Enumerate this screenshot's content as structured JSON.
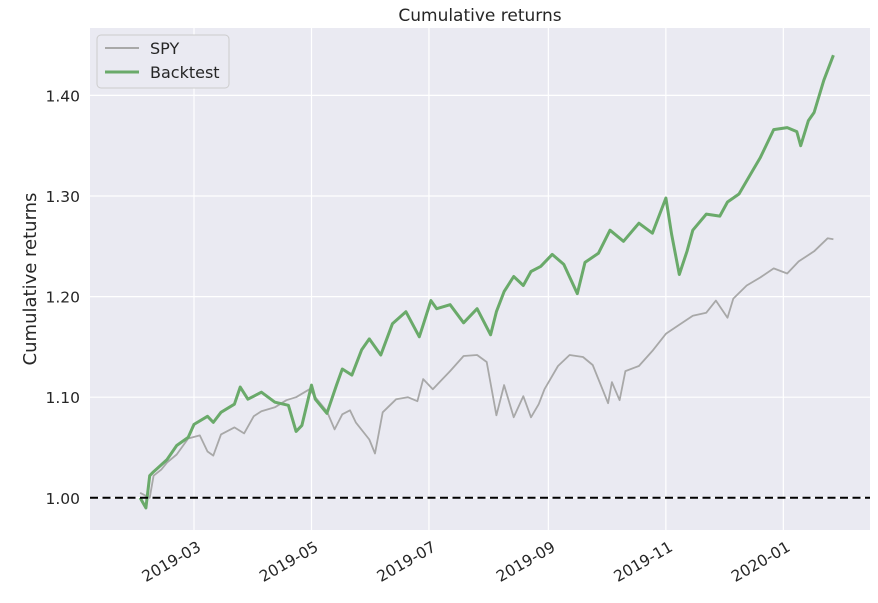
{
  "chart_data": {
    "type": "line",
    "title": "Cumulative returns",
    "xlabel": "",
    "ylabel": "Cumulative returns",
    "x_ticks": [
      "2019-03",
      "2019-05",
      "2019-07",
      "2019-09",
      "2019-11",
      "2020-01"
    ],
    "y_ticks": [
      "1.00",
      "1.10",
      "1.20",
      "1.30",
      "1.40"
    ],
    "xlim": [
      "2019-01-06",
      "2020-02-15"
    ],
    "ylim": [
      0.968,
      1.467
    ],
    "grid": true,
    "legend_position": "top-left",
    "reference_line": {
      "y": 1.0,
      "style": "dashed",
      "color": "#000000"
    },
    "series": [
      {
        "name": "SPY",
        "color": "#a8a8a8",
        "x": [
          "2019-02-01",
          "2019-02-06",
          "2019-02-08",
          "2019-02-12",
          "2019-02-15",
          "2019-02-20",
          "2019-02-26",
          "2019-03-04",
          "2019-03-08",
          "2019-03-11",
          "2019-03-15",
          "2019-03-22",
          "2019-03-27",
          "2019-04-01",
          "2019-04-05",
          "2019-04-12",
          "2019-04-18",
          "2019-04-23",
          "2019-04-30",
          "2019-05-03",
          "2019-05-09",
          "2019-05-13",
          "2019-05-17",
          "2019-05-21",
          "2019-05-24",
          "2019-05-31",
          "2019-06-03",
          "2019-06-07",
          "2019-06-14",
          "2019-06-20",
          "2019-06-25",
          "2019-06-28",
          "2019-07-03",
          "2019-07-12",
          "2019-07-19",
          "2019-07-26",
          "2019-07-31",
          "2019-08-05",
          "2019-08-09",
          "2019-08-14",
          "2019-08-19",
          "2019-08-23",
          "2019-08-27",
          "2019-08-30",
          "2019-09-06",
          "2019-09-12",
          "2019-09-19",
          "2019-09-24",
          "2019-10-02",
          "2019-10-04",
          "2019-10-08",
          "2019-10-11",
          "2019-10-18",
          "2019-10-25",
          "2019-11-01",
          "2019-11-08",
          "2019-11-15",
          "2019-11-22",
          "2019-11-27",
          "2019-12-03",
          "2019-12-06",
          "2019-12-13",
          "2019-12-20",
          "2019-12-27",
          "2020-01-03",
          "2020-01-09",
          "2020-01-17",
          "2020-01-24",
          "2020-01-27"
        ],
        "values": [
          1.005,
          1.0,
          1.022,
          1.028,
          1.035,
          1.043,
          1.059,
          1.062,
          1.046,
          1.042,
          1.063,
          1.07,
          1.064,
          1.081,
          1.086,
          1.09,
          1.097,
          1.1,
          1.108,
          1.1,
          1.086,
          1.068,
          1.083,
          1.087,
          1.075,
          1.058,
          1.044,
          1.085,
          1.098,
          1.1,
          1.096,
          1.118,
          1.108,
          1.126,
          1.141,
          1.142,
          1.135,
          1.082,
          1.112,
          1.08,
          1.101,
          1.08,
          1.093,
          1.108,
          1.131,
          1.142,
          1.14,
          1.132,
          1.094,
          1.115,
          1.097,
          1.126,
          1.131,
          1.146,
          1.163,
          1.172,
          1.181,
          1.184,
          1.196,
          1.179,
          1.198,
          1.211,
          1.219,
          1.228,
          1.223,
          1.235,
          1.245,
          1.258,
          1.257
        ]
      },
      {
        "name": "Backtest",
        "color": "#6aaa6a",
        "x": [
          "2019-02-01",
          "2019-02-04",
          "2019-02-06",
          "2019-02-08",
          "2019-02-11",
          "2019-02-15",
          "2019-02-20",
          "2019-02-26",
          "2019-03-01",
          "2019-03-08",
          "2019-03-11",
          "2019-03-15",
          "2019-03-22",
          "2019-03-25",
          "2019-03-29",
          "2019-04-05",
          "2019-04-12",
          "2019-04-19",
          "2019-04-23",
          "2019-04-26",
          "2019-05-01",
          "2019-05-03",
          "2019-05-09",
          "2019-05-14",
          "2019-05-17",
          "2019-05-22",
          "2019-05-27",
          "2019-05-31",
          "2019-06-06",
          "2019-06-12",
          "2019-06-19",
          "2019-06-26",
          "2019-06-28",
          "2019-07-02",
          "2019-07-05",
          "2019-07-12",
          "2019-07-19",
          "2019-07-26",
          "2019-08-02",
          "2019-08-05",
          "2019-08-09",
          "2019-08-14",
          "2019-08-19",
          "2019-08-23",
          "2019-08-28",
          "2019-09-03",
          "2019-09-09",
          "2019-09-16",
          "2019-09-20",
          "2019-09-27",
          "2019-10-03",
          "2019-10-10",
          "2019-10-18",
          "2019-10-25",
          "2019-11-01",
          "2019-11-04",
          "2019-11-08",
          "2019-11-12",
          "2019-11-15",
          "2019-11-22",
          "2019-11-29",
          "2019-12-03",
          "2019-12-09",
          "2019-12-16",
          "2019-12-20",
          "2019-12-27",
          "2020-01-03",
          "2020-01-08",
          "2020-01-10",
          "2020-01-14",
          "2020-01-17",
          "2020-01-22",
          "2020-01-27"
        ],
        "values": [
          1.0,
          0.99,
          1.022,
          1.026,
          1.031,
          1.038,
          1.052,
          1.06,
          1.073,
          1.081,
          1.075,
          1.085,
          1.093,
          1.11,
          1.098,
          1.105,
          1.095,
          1.092,
          1.066,
          1.072,
          1.112,
          1.098,
          1.084,
          1.112,
          1.128,
          1.122,
          1.147,
          1.158,
          1.142,
          1.173,
          1.185,
          1.16,
          1.172,
          1.196,
          1.188,
          1.192,
          1.174,
          1.188,
          1.162,
          1.185,
          1.205,
          1.22,
          1.211,
          1.225,
          1.23,
          1.242,
          1.232,
          1.203,
          1.234,
          1.243,
          1.266,
          1.255,
          1.273,
          1.263,
          1.298,
          1.262,
          1.222,
          1.245,
          1.266,
          1.282,
          1.28,
          1.294,
          1.302,
          1.325,
          1.338,
          1.366,
          1.368,
          1.364,
          1.35,
          1.375,
          1.383,
          1.415,
          1.44
        ]
      }
    ]
  }
}
